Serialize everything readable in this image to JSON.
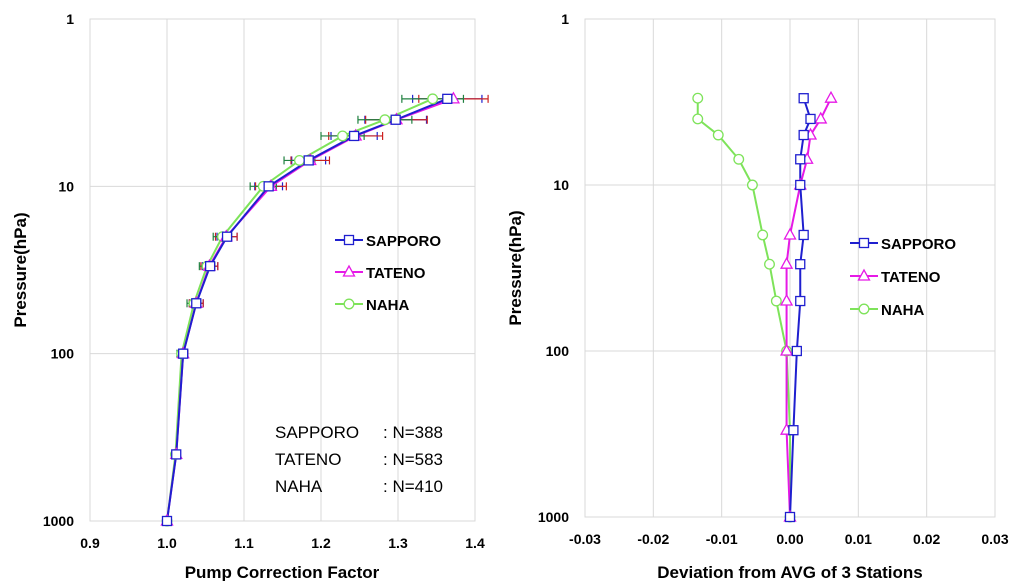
{
  "chart_data": [
    {
      "type": "line",
      "xlabel": "Pump Correction Factor",
      "ylabel": "Pressure(hPa)",
      "xlim": [
        0.9,
        1.45
      ],
      "ylim": [
        1,
        1000
      ],
      "y_scale": "log",
      "y_reversed": true,
      "grid": true,
      "legend_placement": "center-right",
      "x_ticks": [
        "0.9",
        "1.0",
        "1.1",
        "1.2",
        "1.3",
        "1.4"
      ],
      "y_ticks": [
        "1",
        "10",
        "100",
        "1000"
      ],
      "pressure": [
        1000,
        400,
        100,
        50,
        30,
        20,
        10,
        7,
        5,
        4,
        3
      ],
      "series": [
        {
          "name": "SAPPORO",
          "color": "#1f1fcf",
          "marker": "square",
          "values": [
            1.0,
            1.012,
            1.021,
            1.038,
            1.056,
            1.078,
            1.132,
            1.184,
            1.243,
            1.297,
            1.364
          ],
          "error": [
            0.003,
            0.004,
            0.006,
            0.009,
            0.01,
            0.013,
            0.018,
            0.022,
            0.03,
            0.04,
            0.045
          ]
        },
        {
          "name": "TATENO",
          "color": "#e619e6",
          "marker": "triangle",
          "values": [
            1.0,
            1.012,
            1.021,
            1.038,
            1.055,
            1.077,
            1.135,
            1.186,
            1.245,
            1.298,
            1.372
          ],
          "error": [
            0.003,
            0.004,
            0.006,
            0.009,
            0.011,
            0.014,
            0.02,
            0.025,
            0.035,
            0.04,
            0.045
          ]
        },
        {
          "name": "NAHA",
          "color": "#7ee35a",
          "marker": "circle",
          "values": [
            1.0,
            1.011,
            1.019,
            1.035,
            1.052,
            1.072,
            1.125,
            1.172,
            1.228,
            1.283,
            1.345
          ],
          "error": [
            0.003,
            0.004,
            0.006,
            0.009,
            0.01,
            0.012,
            0.017,
            0.02,
            0.028,
            0.035,
            0.04
          ]
        }
      ],
      "annotations": [
        {
          "station": "SAPPORO",
          "n": ": N=388"
        },
        {
          "station": "TATENO",
          "n": ": N=583"
        },
        {
          "station": "NAHA",
          "n": ": N=410"
        }
      ]
    },
    {
      "type": "line",
      "xlabel": "Deviation from AVG of 3 Stations",
      "ylabel": "Pressure(hPa)",
      "xlim": [
        -0.03,
        0.03
      ],
      "ylim": [
        1,
        1000
      ],
      "y_scale": "log",
      "y_reversed": true,
      "grid": true,
      "legend_placement": "center-right",
      "x_ticks": [
        "-0.03",
        "-0.02",
        "-0.01",
        "0.00",
        "0.01",
        "0.02",
        "0.03"
      ],
      "y_ticks": [
        "1",
        "10",
        "100",
        "1000"
      ],
      "pressure": [
        1000,
        300,
        100,
        50,
        30,
        20,
        10,
        7,
        5,
        4,
        3
      ],
      "series": [
        {
          "name": "SAPPORO",
          "color": "#1f1fcf",
          "marker": "square",
          "values": [
            0.0,
            0.0005,
            0.001,
            0.0015,
            0.0015,
            0.002,
            0.0015,
            0.0015,
            0.002,
            0.003,
            0.002
          ]
        },
        {
          "name": "TATENO",
          "color": "#e619e6",
          "marker": "triangle",
          "values": [
            0.0,
            -0.0005,
            -0.0005,
            -0.0005,
            -0.0005,
            0.0,
            0.0015,
            0.0025,
            0.003,
            0.0045,
            0.006
          ]
        },
        {
          "name": "NAHA",
          "color": "#7ee35a",
          "marker": "circle",
          "values": [
            0.0,
            0.0,
            -0.0005,
            -0.002,
            -0.003,
            -0.004,
            -0.0055,
            -0.0075,
            -0.0105,
            -0.0135,
            -0.0135
          ]
        }
      ]
    }
  ]
}
